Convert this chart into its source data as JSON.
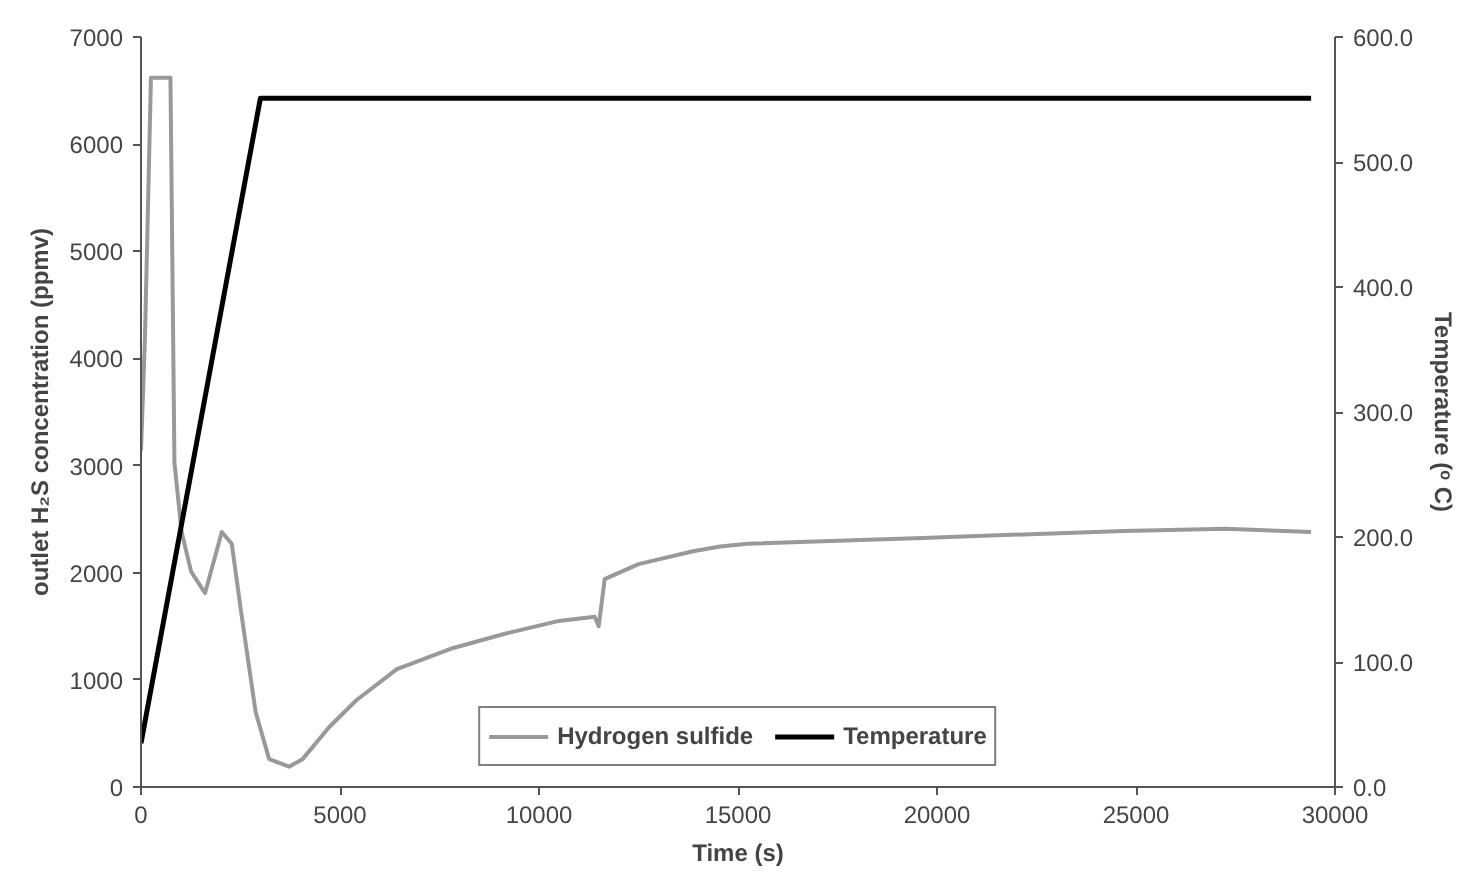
{
  "chart_data": {
    "type": "line",
    "xlabel": "Time (s)",
    "ylabel": "outlet H₂S concentration (ppmv)",
    "y2label": "Temperature (ᵒ C)",
    "series": [
      {
        "name": "Hydrogen sulfide",
        "color": "#999999",
        "x": [
          0,
          100,
          250,
          740,
          840,
          1020,
          1260,
          1610,
          2030,
          2280,
          2540,
          2880,
          3220,
          3720,
          4060,
          4730,
          5410,
          6430,
          7780,
          9140,
          10500,
          11400,
          11500,
          11650,
          12500,
          13870,
          14550,
          15240,
          19630,
          24700,
          27240,
          29400
        ],
        "values": [
          3140,
          4200,
          6620,
          6620,
          3030,
          2380,
          2010,
          1810,
          2380,
          2270,
          1570,
          700,
          260,
          190,
          260,
          560,
          810,
          1100,
          1290,
          1430,
          1550,
          1590,
          1500,
          1940,
          2080,
          2200,
          2245,
          2270,
          2325,
          2390,
          2410,
          2380
        ]
      },
      {
        "name": "Temperature",
        "color": "#000000",
        "axis": "y2",
        "x": [
          0,
          3000,
          29400
        ],
        "values": [
          35,
          551,
          551
        ]
      }
    ],
    "xlim": [
      0,
      30000
    ],
    "xticks": [
      0,
      5000,
      10000,
      15000,
      20000,
      25000,
      30000
    ],
    "ylim": [
      0,
      7000
    ],
    "yticks": [
      0,
      1000,
      2000,
      3000,
      4000,
      5000,
      6000,
      7000
    ],
    "y2lim": [
      0,
      600
    ],
    "y2ticks": [
      {
        "value": 0,
        "label": "0.0"
      },
      {
        "value": 100,
        "label": "100.0"
      },
      {
        "value": 200,
        "label": "200.0"
      },
      {
        "value": 300,
        "label": "300.0"
      },
      {
        "value": 400,
        "label": "400.0"
      },
      {
        "value": 500,
        "label": "500.0"
      },
      {
        "value": 600,
        "label": "600.0"
      }
    ],
    "grid": false,
    "legend": "bottom"
  }
}
